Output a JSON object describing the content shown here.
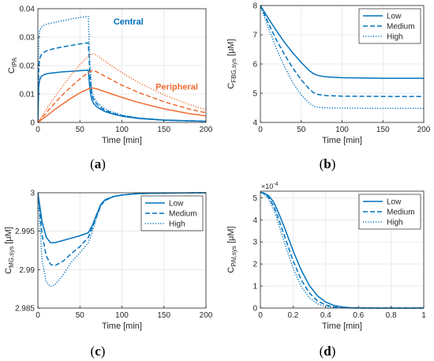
{
  "colors": {
    "central": "#0072BD",
    "peripheral": "#F26B32",
    "axis": "#262626",
    "grid": "#e4e4e4"
  },
  "styles": {
    "Low": "solid",
    "Medium": "dashed",
    "High": "dotted"
  },
  "chart_data": [
    {
      "id": "a",
      "type": "line",
      "panel_label": "a",
      "xlabel": "Time [min]",
      "ylabel": {
        "base": "C",
        "sub": "tPA"
      },
      "xlim": [
        0,
        200
      ],
      "ylim": [
        0,
        0.04
      ],
      "xticks": [
        0,
        50,
        100,
        150,
        200
      ],
      "yticks": [
        0,
        0.01,
        0.02,
        0.03,
        0.04
      ],
      "ytick_labels": [
        "0",
        "0.01",
        "0.02",
        "0.03",
        "0.04"
      ],
      "grid": true,
      "annotations": [
        {
          "text": "Central",
          "x": 90,
          "y": 0.0345,
          "color_key": "central"
        },
        {
          "text": "Peripheral",
          "x": 140,
          "y": 0.0115,
          "color_key": "peripheral"
        }
      ],
      "series": [
        {
          "group": "central",
          "level": "Low",
          "x": [
            0,
            1,
            2,
            4,
            8,
            12,
            20,
            30,
            40,
            50,
            60,
            62,
            64,
            66,
            70,
            75,
            80,
            90,
            100,
            120,
            150,
            200
          ],
          "y": [
            0.0,
            0.0125,
            0.0148,
            0.0162,
            0.0169,
            0.0172,
            0.0175,
            0.0178,
            0.018,
            0.0182,
            0.0184,
            0.0115,
            0.0082,
            0.0068,
            0.0055,
            0.0046,
            0.0038,
            0.0029,
            0.0022,
            0.0014,
            0.0008,
            0.0004
          ]
        },
        {
          "group": "central",
          "level": "Medium",
          "x": [
            0,
            1,
            2,
            4,
            8,
            12,
            20,
            30,
            40,
            50,
            60,
            62,
            64,
            66,
            70,
            75,
            80,
            90,
            100,
            120,
            150,
            200
          ],
          "y": [
            0.0,
            0.019,
            0.0222,
            0.0238,
            0.0248,
            0.0254,
            0.026,
            0.0266,
            0.0271,
            0.0276,
            0.028,
            0.0165,
            0.0102,
            0.0082,
            0.0065,
            0.0052,
            0.0043,
            0.0032,
            0.0024,
            0.0015,
            0.0008,
            0.0004
          ]
        },
        {
          "group": "central",
          "level": "High",
          "x": [
            0,
            1,
            2,
            4,
            8,
            12,
            20,
            30,
            40,
            50,
            60,
            62,
            64,
            66,
            70,
            75,
            80,
            90,
            100,
            120,
            150,
            200
          ],
          "y": [
            0.0,
            0.0295,
            0.0322,
            0.0335,
            0.0343,
            0.0347,
            0.0352,
            0.0358,
            0.0364,
            0.0369,
            0.0373,
            0.0205,
            0.0118,
            0.0092,
            0.0072,
            0.0058,
            0.0047,
            0.0035,
            0.0026,
            0.0016,
            0.0009,
            0.0004
          ]
        },
        {
          "group": "peripheral",
          "level": "Low",
          "x": [
            0,
            10,
            20,
            30,
            40,
            50,
            60,
            65,
            70,
            80,
            100,
            120,
            150,
            180,
            200
          ],
          "y": [
            0.0,
            0.0022,
            0.0045,
            0.0066,
            0.0086,
            0.0104,
            0.0118,
            0.0121,
            0.0118,
            0.0108,
            0.0088,
            0.007,
            0.0048,
            0.0031,
            0.0023
          ]
        },
        {
          "group": "peripheral",
          "level": "Medium",
          "x": [
            0,
            10,
            20,
            30,
            40,
            50,
            60,
            65,
            70,
            80,
            100,
            120,
            150,
            180,
            200
          ],
          "y": [
            0.0,
            0.0034,
            0.0068,
            0.0099,
            0.0127,
            0.0153,
            0.0176,
            0.0183,
            0.0178,
            0.0162,
            0.0131,
            0.0105,
            0.0073,
            0.0047,
            0.0034
          ]
        },
        {
          "group": "peripheral",
          "level": "High",
          "x": [
            0,
            10,
            20,
            30,
            40,
            50,
            60,
            65,
            70,
            80,
            100,
            120,
            150,
            180,
            200
          ],
          "y": [
            0.0,
            0.0045,
            0.009,
            0.013,
            0.0168,
            0.0203,
            0.0233,
            0.0242,
            0.0236,
            0.0215,
            0.0175,
            0.014,
            0.0097,
            0.0063,
            0.0045
          ]
        }
      ]
    },
    {
      "id": "b",
      "type": "line",
      "panel_label": "b",
      "xlabel": "Time [min]",
      "ylabel": {
        "base": "C",
        "sub": "FBG,sys",
        "unit": "[μM]"
      },
      "xlim": [
        0,
        200
      ],
      "ylim": [
        4,
        8
      ],
      "xticks": [
        0,
        50,
        100,
        150,
        200
      ],
      "yticks": [
        4,
        5,
        6,
        7,
        8
      ],
      "ytick_labels": [
        "4",
        "5",
        "6",
        "7",
        "8"
      ],
      "grid": true,
      "legend": {
        "placement": "top-right",
        "entries": [
          "Low",
          "Medium",
          "High"
        ]
      },
      "series": [
        {
          "group": "central",
          "level": "Low",
          "x": [
            0,
            10,
            20,
            30,
            40,
            50,
            60,
            65,
            70,
            80,
            100,
            150,
            200
          ],
          "y": [
            8.0,
            7.55,
            7.12,
            6.72,
            6.37,
            6.05,
            5.77,
            5.67,
            5.61,
            5.56,
            5.53,
            5.51,
            5.51
          ]
        },
        {
          "group": "central",
          "level": "Medium",
          "x": [
            0,
            10,
            20,
            30,
            40,
            50,
            60,
            65,
            70,
            80,
            100,
            150,
            200
          ],
          "y": [
            8.0,
            7.38,
            6.8,
            6.3,
            5.85,
            5.46,
            5.14,
            5.02,
            4.96,
            4.92,
            4.9,
            4.89,
            4.89
          ]
        },
        {
          "group": "central",
          "level": "High",
          "x": [
            0,
            10,
            20,
            30,
            40,
            50,
            60,
            65,
            70,
            80,
            100,
            150,
            200
          ],
          "y": [
            8.0,
            7.22,
            6.5,
            5.88,
            5.35,
            4.94,
            4.65,
            4.56,
            4.52,
            4.5,
            4.49,
            4.48,
            4.48
          ]
        }
      ]
    },
    {
      "id": "c",
      "type": "line",
      "panel_label": "c",
      "xlabel": "Time [min]",
      "ylabel": {
        "base": "C",
        "sub": "MG,sys",
        "unit": "[μM]"
      },
      "xlim": [
        0,
        200
      ],
      "ylim": [
        2.985,
        3.0
      ],
      "xticks": [
        0,
        50,
        100,
        150,
        200
      ],
      "yticks": [
        2.985,
        2.99,
        2.995,
        3.0
      ],
      "ytick_labels": [
        "2.985",
        "2.99",
        "2.995",
        "3"
      ],
      "grid": true,
      "legend": {
        "placement": "right",
        "entries": [
          "Low",
          "Medium",
          "High"
        ]
      },
      "series": [
        {
          "group": "central",
          "level": "Low",
          "x": [
            0,
            2,
            5,
            10,
            15,
            20,
            30,
            40,
            50,
            60,
            65,
            70,
            75,
            80,
            90,
            100,
            120,
            150,
            200
          ],
          "y": [
            3.0,
            2.9985,
            2.9962,
            2.9942,
            2.9935,
            2.9935,
            2.9938,
            2.9941,
            2.9944,
            2.9948,
            2.9958,
            2.9972,
            2.9985,
            2.9991,
            2.9995,
            2.9997,
            2.9999,
            2.99995,
            3.0
          ]
        },
        {
          "group": "central",
          "level": "Medium",
          "x": [
            0,
            2,
            5,
            10,
            15,
            20,
            30,
            40,
            50,
            60,
            65,
            70,
            75,
            80,
            90,
            100,
            120,
            150,
            200
          ],
          "y": [
            3.0,
            2.9978,
            2.9945,
            2.9918,
            2.9907,
            2.9905,
            2.9911,
            2.9921,
            2.993,
            2.9942,
            2.9955,
            2.997,
            2.9984,
            2.999,
            2.9995,
            2.9997,
            2.9999,
            2.99995,
            3.0
          ]
        },
        {
          "group": "central",
          "level": "High",
          "x": [
            0,
            2,
            5,
            10,
            15,
            20,
            30,
            40,
            50,
            60,
            65,
            70,
            75,
            80,
            90,
            100,
            120,
            150,
            200
          ],
          "y": [
            3.0,
            2.9965,
            2.9912,
            2.9884,
            2.9878,
            2.988,
            2.9893,
            2.991,
            2.9922,
            2.9935,
            2.995,
            2.9968,
            2.9983,
            2.999,
            2.9995,
            2.9997,
            2.9999,
            2.99995,
            3.0
          ]
        }
      ]
    },
    {
      "id": "d",
      "type": "line",
      "panel_label": "d",
      "xlabel": "Time [min]",
      "ylabel": {
        "base": "C",
        "sub": "PAI,sys",
        "unit": "[μM]"
      },
      "xlim": [
        0,
        1
      ],
      "ylim": [
        0,
        5.3
      ],
      "xticks": [
        0,
        0.2,
        0.4,
        0.6,
        0.8,
        1
      ],
      "xtick_labels": [
        "0",
        "0.2",
        "0.4",
        "0.6",
        "0.8",
        "1"
      ],
      "yticks": [
        0,
        1,
        2,
        3,
        4,
        5
      ],
      "ytick_labels": [
        "0",
        "1",
        "2",
        "3",
        "4",
        "5"
      ],
      "y_exponent": "×10",
      "y_exponent_power": "-4",
      "grid": true,
      "legend": {
        "placement": "right",
        "entries": [
          "Low",
          "Medium",
          "High"
        ]
      },
      "series": [
        {
          "group": "central",
          "level": "Low",
          "x": [
            0,
            0.02,
            0.05,
            0.08,
            0.1,
            0.13,
            0.16,
            0.2,
            0.25,
            0.3,
            0.35,
            0.4,
            0.45,
            0.5,
            0.55,
            0.6,
            0.7,
            0.8,
            1.0
          ],
          "y": [
            5.25,
            5.22,
            5.1,
            4.82,
            4.5,
            3.98,
            3.4,
            2.6,
            1.72,
            1.02,
            0.55,
            0.27,
            0.12,
            0.05,
            0.02,
            0.01,
            0.0,
            0.0,
            0.0
          ]
        },
        {
          "group": "central",
          "level": "Medium",
          "x": [
            0,
            0.02,
            0.05,
            0.08,
            0.1,
            0.13,
            0.16,
            0.2,
            0.25,
            0.3,
            0.35,
            0.4,
            0.45,
            0.5,
            0.55,
            0.6,
            0.7,
            0.8,
            1.0
          ],
          "y": [
            5.25,
            5.2,
            5.02,
            4.65,
            4.28,
            3.65,
            3.0,
            2.15,
            1.28,
            0.68,
            0.32,
            0.14,
            0.05,
            0.02,
            0.01,
            0.0,
            0.0,
            0.0,
            0.0
          ]
        },
        {
          "group": "central",
          "level": "High",
          "x": [
            0,
            0.02,
            0.05,
            0.08,
            0.1,
            0.13,
            0.16,
            0.2,
            0.25,
            0.3,
            0.35,
            0.4,
            0.45,
            0.5,
            0.55,
            0.6,
            0.7,
            0.8,
            1.0
          ],
          "y": [
            5.25,
            5.18,
            4.95,
            4.5,
            4.08,
            3.38,
            2.68,
            1.82,
            0.98,
            0.46,
            0.19,
            0.07,
            0.02,
            0.01,
            0.0,
            0.0,
            0.0,
            0.0,
            0.0
          ]
        }
      ]
    }
  ]
}
